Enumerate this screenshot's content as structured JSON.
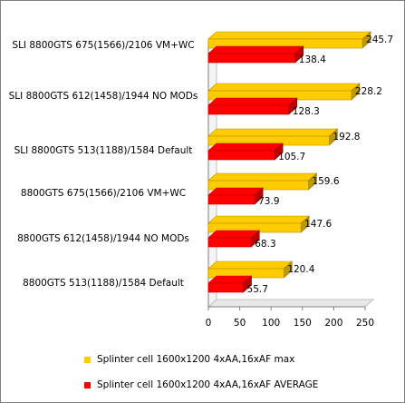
{
  "chart_data": {
    "type": "bar",
    "orientation": "horizontal",
    "categories": [
      "SLI 8800GTS 675(1566)/2106 VM+WC",
      "SLI 8800GTS 612(1458)/1944 NO MODs",
      "SLI 8800GTS 513(1188)/1584 Default",
      "8800GTS 675(1566)/2106 VM+WC",
      "8800GTS 612(1458)/1944 NO MODs",
      "8800GTS 513(1188)/1584 Default"
    ],
    "series": [
      {
        "name": "Splinter cell 1600x1200 4xAA,16xAF max",
        "color": "#ffcc00",
        "values": [
          245.7,
          228.2,
          192.8,
          159.6,
          147.6,
          120.4
        ]
      },
      {
        "name": "Splinter cell 1600x1200 4xAA,16xAF AVERAGE",
        "color": "#ff0000",
        "values": [
          138.4,
          128.3,
          105.7,
          73.9,
          68.3,
          55.7
        ]
      }
    ],
    "data_labels": {
      "max": [
        "245.7",
        "228.2",
        "192.8",
        "159.6",
        "147.6",
        "120.4"
      ],
      "average": [
        "138.4",
        "128.3",
        "105.7",
        "73.9",
        "68.3",
        "55.7"
      ]
    },
    "xlim": [
      0,
      250
    ],
    "xticks": [
      "0",
      "50",
      "100",
      "150",
      "200",
      "250"
    ],
    "grid": false,
    "legend_position": "bottom",
    "three_d": true
  }
}
